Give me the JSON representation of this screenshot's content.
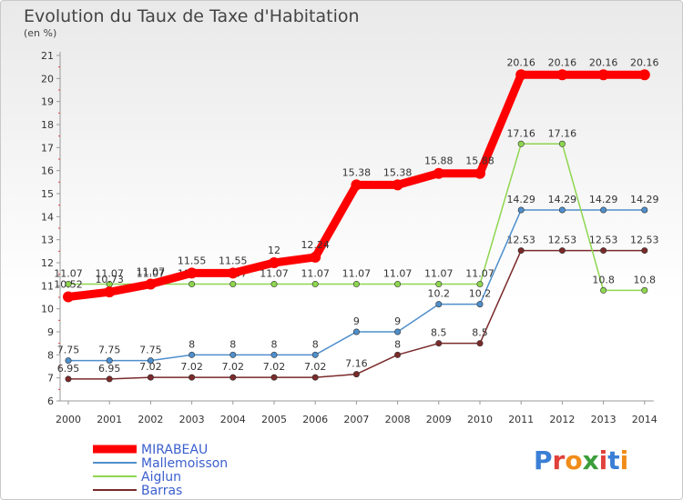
{
  "title": "Evolution du Taux de Taxe d'Habitation",
  "subtitle": "(en %)",
  "logo": "Proxiti",
  "chart_data": {
    "type": "line",
    "title": "Evolution du Taux de Taxe d'Habitation",
    "ylabel": "(en %)",
    "xlabel": "",
    "x": [
      "2000",
      "2001",
      "2002",
      "2003",
      "2004",
      "2005",
      "2006",
      "2007",
      "2008",
      "2009",
      "2010",
      "2011",
      "2012",
      "2013",
      "2014"
    ],
    "ylim": [
      6,
      21
    ],
    "yticks": [
      6,
      7,
      8,
      9,
      10,
      11,
      12,
      13,
      14,
      15,
      16,
      17,
      18,
      19,
      20,
      21
    ],
    "grid": false,
    "legend_position": "bottom-left",
    "series": [
      {
        "name": "MIRABEAU",
        "color": "#ff0000",
        "values": [
          10.52,
          10.73,
          11.07,
          11.55,
          11.55,
          12,
          12.24,
          15.38,
          15.38,
          15.88,
          15.88,
          20.16,
          20.16,
          20.16,
          20.16
        ],
        "labels": [
          "10.52",
          "10.73",
          "11.07",
          "11.55",
          "11.55",
          "12",
          "12.24",
          "15.38",
          "15.38",
          "15.88",
          "15.88",
          "20.16",
          "20.16",
          "20.16",
          "20.16"
        ]
      },
      {
        "name": "Mallemoisson",
        "color": "#4f8fcc",
        "values": [
          7.75,
          7.75,
          7.75,
          8,
          8,
          8,
          8,
          9,
          9,
          10.2,
          10.2,
          14.29,
          14.29,
          14.29,
          14.29
        ],
        "labels": [
          "7.75",
          "7.75",
          "7.75",
          "8",
          "8",
          "8",
          "8",
          "9",
          "9",
          "10.2",
          "10.2",
          "14.29",
          "14.29",
          "14.29",
          "14.29"
        ]
      },
      {
        "name": "Aiglun",
        "color": "#8ed64f",
        "values": [
          11.07,
          11.07,
          11.07,
          11.07,
          11.07,
          11.07,
          11.07,
          11.07,
          11.07,
          11.07,
          11.07,
          17.16,
          17.16,
          10.8,
          10.8
        ],
        "labels": [
          "11.07",
          "11.07",
          "11.07",
          "11.07",
          "11.07",
          "11.07",
          "11.07",
          "11.07",
          "11.07",
          "11.07",
          "11.07",
          "17.16",
          "17.16",
          "10.8",
          "10.8"
        ]
      },
      {
        "name": "Barras",
        "color": "#7a2a2a",
        "values": [
          6.95,
          6.95,
          7.02,
          7.02,
          7.02,
          7.02,
          7.02,
          7.16,
          8,
          8.5,
          8.5,
          12.53,
          12.53,
          12.53,
          12.53
        ],
        "labels": [
          "6.95",
          "6.95",
          "7.02",
          "7.02",
          "7.02",
          "7.02",
          "7.02",
          "7.16",
          "8",
          "8.5",
          "8.5",
          "12.53",
          "12.53",
          "12.53",
          "12.53"
        ]
      }
    ]
  }
}
